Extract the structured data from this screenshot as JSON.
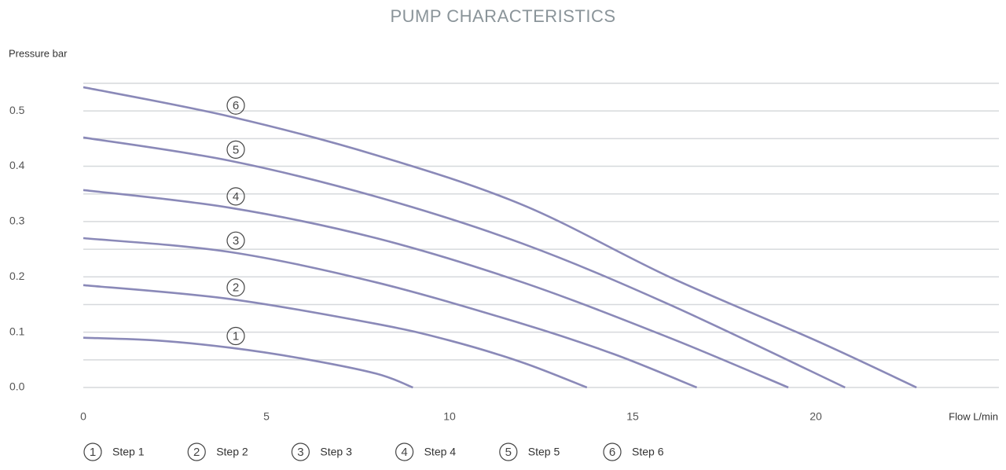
{
  "chart_data": {
    "type": "line",
    "title": "PUMP CHARACTERISTICS",
    "y_label": "Pressure bar",
    "x_label": "Flow L/min",
    "xlim": [
      0,
      25
    ],
    "xticks": [
      0,
      5,
      10,
      15,
      20
    ],
    "ylim": [
      0,
      0.55
    ],
    "yticks": [
      {
        "value": 0,
        "label": "0.0"
      },
      0.1,
      0.2,
      0.3,
      0.4,
      0.5
    ],
    "minor_yticks": [
      0.05,
      0.15,
      0.25,
      0.35,
      0.45,
      0.55
    ],
    "grid": true,
    "series": [
      {
        "name": "Step 1",
        "marker": "1",
        "color": "#8a89b8",
        "x": [
          0,
          2,
          4,
          6,
          8,
          9
        ],
        "values": [
          0.09,
          0.085,
          0.072,
          0.052,
          0.025,
          0
        ]
      },
      {
        "name": "Step 2",
        "marker": "2",
        "color": "#8a89b8",
        "x": [
          0,
          4,
          8,
          10,
          12,
          13.75
        ],
        "values": [
          0.185,
          0.16,
          0.115,
          0.085,
          0.045,
          0
        ]
      },
      {
        "name": "Step 3",
        "marker": "3",
        "color": "#8a89b8",
        "x": [
          0,
          4,
          8,
          12,
          14.5,
          16.75
        ],
        "values": [
          0.27,
          0.245,
          0.19,
          0.115,
          0.06,
          0
        ]
      },
      {
        "name": "Step 4",
        "marker": "4",
        "color": "#8a89b8",
        "x": [
          0,
          4,
          8,
          12,
          16,
          19.25
        ],
        "values": [
          0.357,
          0.325,
          0.27,
          0.19,
          0.09,
          0
        ]
      },
      {
        "name": "Step 5",
        "marker": "5",
        "color": "#8a89b8",
        "x": [
          0,
          4,
          8,
          12,
          16,
          20.8
        ],
        "values": [
          0.452,
          0.41,
          0.345,
          0.26,
          0.15,
          0
        ]
      },
      {
        "name": "Step 6",
        "marker": "6",
        "color": "#8a89b8",
        "x": [
          0,
          4,
          8,
          12,
          16,
          20,
          22.75
        ],
        "values": [
          0.543,
          0.49,
          0.42,
          0.33,
          0.2,
          0.085,
          0
        ]
      }
    ]
  }
}
